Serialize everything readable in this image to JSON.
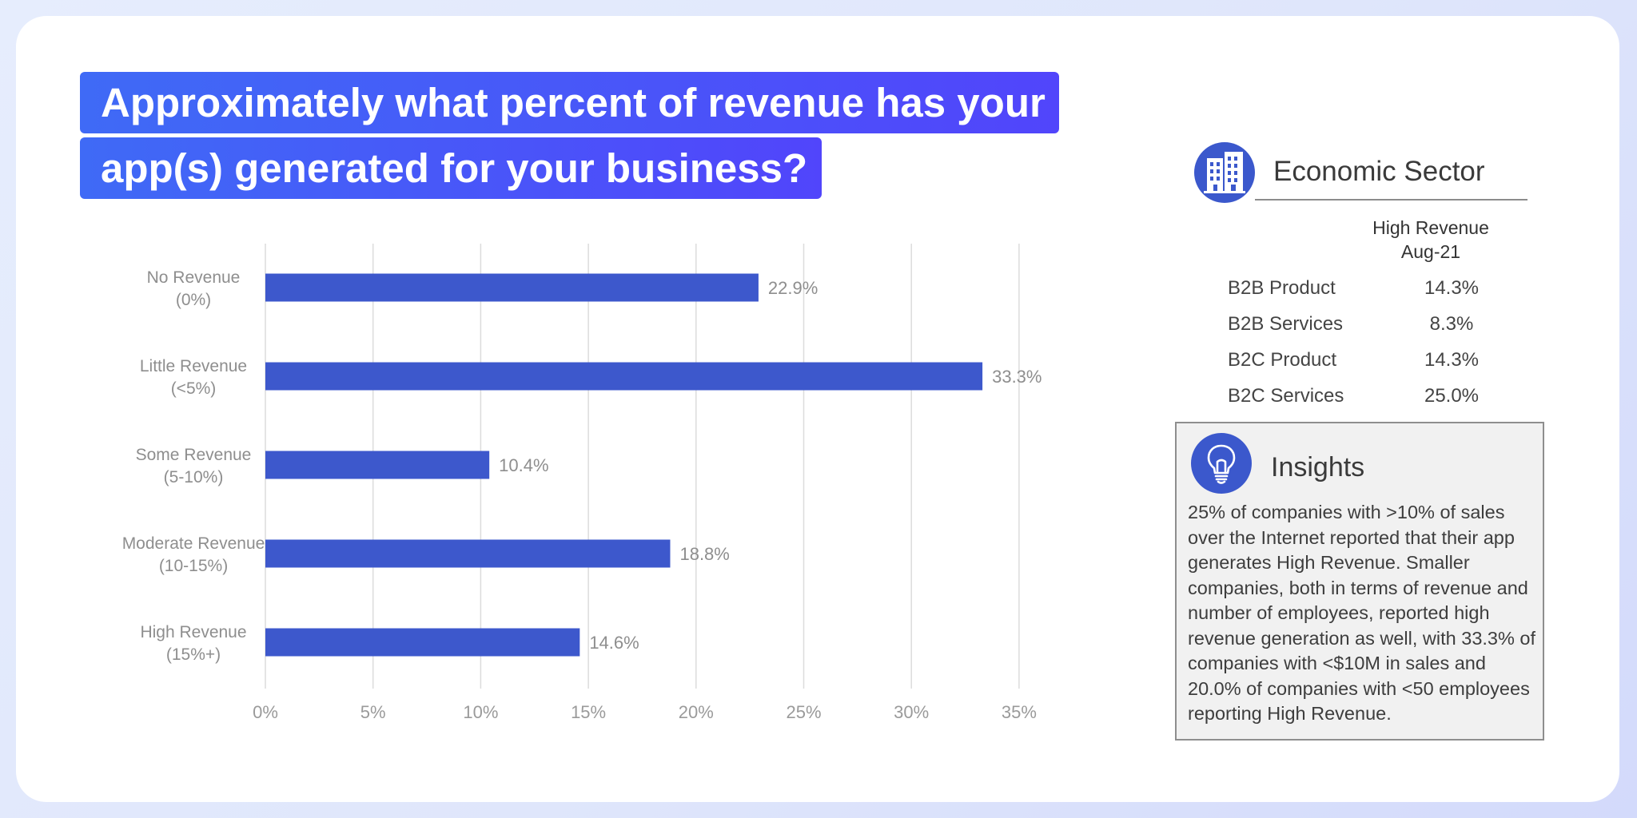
{
  "title_lines": [
    "Approximately what percent of revenue has your",
    "app(s) generated for your business?"
  ],
  "chart_data": {
    "type": "bar",
    "orientation": "horizontal",
    "categories": [
      [
        "No Revenue",
        "(0%)"
      ],
      [
        "Little Revenue",
        "(<5%)"
      ],
      [
        "Some Revenue",
        "(5-10%)"
      ],
      [
        "Moderate Revenue",
        "(10-15%)"
      ],
      [
        "High Revenue",
        "(15%+)"
      ]
    ],
    "values": [
      22.9,
      33.3,
      10.4,
      18.8,
      14.6
    ],
    "value_labels": [
      "22.9%",
      "33.3%",
      "10.4%",
      "18.8%",
      "14.6%"
    ],
    "xlim": [
      0,
      35
    ],
    "xticks": [
      0,
      5,
      10,
      15,
      20,
      25,
      30,
      35
    ],
    "xtick_labels": [
      "0%",
      "5%",
      "10%",
      "15%",
      "20%",
      "25%",
      "30%",
      "35%"
    ],
    "grid": true,
    "bar_color": "#3d58cc"
  },
  "sector": {
    "icon": "buildings-icon",
    "title": "Economic Sector",
    "column_header": [
      "High Revenue",
      "Aug-21"
    ],
    "rows": [
      {
        "name": "B2B Product",
        "value": "14.3%"
      },
      {
        "name": "B2B Services",
        "value": "8.3%"
      },
      {
        "name": "B2C Product",
        "value": "14.3%"
      },
      {
        "name": "B2C Services",
        "value": "25.0%"
      }
    ]
  },
  "insights": {
    "icon": "lightbulb-icon",
    "title": "Insights",
    "body": "25% of companies with >10% of sales over the Internet reported that their app generates High Revenue. Smaller companies, both in terms of revenue and number of employees, reported high revenue generation as well, with 33.3% of companies with <$10M in sales and 20.0% of companies with <50 employees reporting High Revenue."
  },
  "colors": {
    "accent_start": "#3f6af6",
    "accent_end": "#5145fb",
    "icon_bg": "#3b58cc"
  }
}
